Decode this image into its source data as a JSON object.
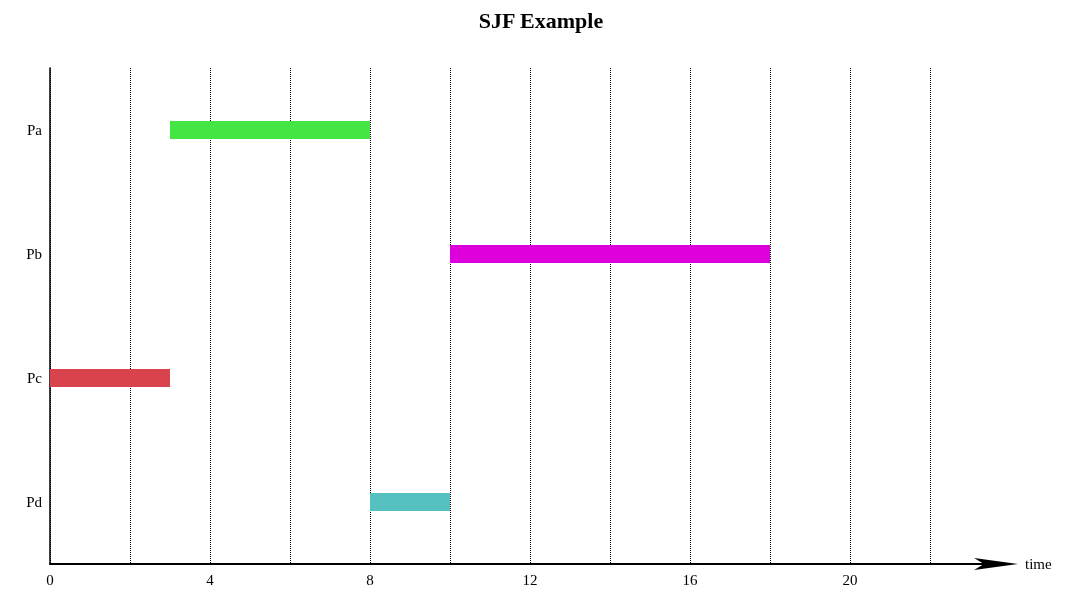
{
  "chart_data": {
    "type": "bar",
    "orientation": "horizontal",
    "title": "SJF Example",
    "xlabel": "time",
    "categories": [
      "Pa",
      "Pb",
      "Pc",
      "Pd"
    ],
    "base": [
      3,
      10,
      0,
      8
    ],
    "values": [
      5,
      8,
      3,
      2
    ],
    "colors": [
      "#44e644",
      "#dd00dd",
      "#d9434e",
      "#55c0c0"
    ],
    "xlim": [
      0,
      24
    ],
    "xticks": [
      0,
      {
        "value": 2,
        "label": null
      },
      4,
      {
        "value": 6,
        "label": null
      },
      8,
      {
        "value": 10,
        "label": null
      },
      12,
      {
        "value": 14,
        "label": null
      },
      16,
      {
        "value": 18,
        "label": null
      },
      20,
      {
        "value": 22,
        "label": null
      }
    ],
    "grid": "x",
    "line_style": "dotted"
  }
}
